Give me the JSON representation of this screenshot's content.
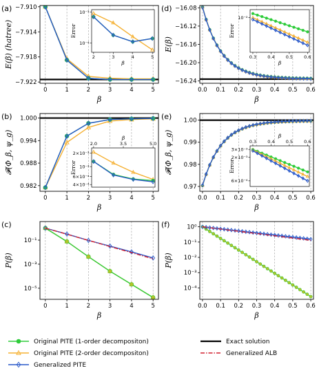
{
  "colors": {
    "green": "#2ecc3a",
    "orange": "#f5b031",
    "blue": "#2757c9",
    "black": "#000000",
    "red": "#d21f2e",
    "yellowgreen": "#b5c22a"
  },
  "legend": {
    "items": [
      {
        "key": "pite1",
        "label": "Original PITE (1-order decompositon)"
      },
      {
        "key": "pite2",
        "label": "Original PITE (2-order decompositon)"
      },
      {
        "key": "gpite",
        "label": "Generalized PITE"
      },
      {
        "key": "exact",
        "label": "Exact solution"
      },
      {
        "key": "galb",
        "label": "Generalized ALB"
      }
    ]
  },
  "chart_data": [
    {
      "id": "a",
      "panel_label": "(a)",
      "type": "line",
      "xlabel": "β",
      "ylabel": "E(β) (hatree)",
      "xlim": [
        -0.25,
        5.25
      ],
      "ylim": [
        -7.9222,
        -7.9098
      ],
      "xticks": [
        0,
        1,
        2,
        3,
        4,
        5
      ],
      "yticks": [
        -7.91,
        -7.914,
        -7.918,
        -7.922
      ],
      "ytick_labels": [
        "−7.910",
        "−7.914",
        "−7.918",
        "−7.922"
      ],
      "hline": {
        "key": "exact",
        "y": -7.9216
      },
      "series": [
        {
          "key": "pite2",
          "x": [
            0,
            1,
            2,
            3,
            4,
            5
          ],
          "y": [
            -7.91,
            -7.9183,
            -7.9211,
            -7.9214,
            -7.9215,
            -7.9215
          ]
        },
        {
          "key": "pite1",
          "x": [
            0,
            1,
            2,
            3,
            4,
            5
          ],
          "y": [
            -7.91,
            -7.9185,
            -7.9214,
            -7.9216,
            -7.9216,
            -7.9216
          ]
        },
        {
          "key": "gpite",
          "x": [
            0,
            1,
            2,
            3,
            4,
            5
          ],
          "y": [
            -7.91,
            -7.9185,
            -7.9214,
            -7.9216,
            -7.9216,
            -7.9216
          ]
        }
      ],
      "inset": {
        "xlabel": "β",
        "ylabel": "Error",
        "yscale": "log",
        "xlim": [
          1.9,
          5.1
        ],
        "ylim": [
          5e-05,
          0.0012
        ],
        "xticks": [
          2,
          3,
          4,
          5
        ],
        "yticks": [
          0.0001,
          0.001
        ],
        "ytick_labels": [
          "10⁻⁴",
          "10⁻³"
        ],
        "series": [
          {
            "key": "pite2",
            "x": [
              2,
              3,
              4,
              5
            ],
            "y": [
              0.0009,
              0.00045,
              0.00016,
              6e-05
            ]
          },
          {
            "key": "pite1",
            "x": [
              2,
              3,
              4,
              5
            ],
            "y": [
              0.0007,
              0.00018,
              0.00011,
              0.00014
            ]
          },
          {
            "key": "gpite",
            "x": [
              2,
              3,
              4,
              5
            ],
            "y": [
              0.0007,
              0.00018,
              0.00011,
              0.00014
            ]
          }
        ]
      }
    },
    {
      "id": "b",
      "panel_label": "(b)",
      "type": "line",
      "xlabel": "β",
      "ylabel": "𝓕(Φ_β, ψ_g)",
      "xlim": [
        -0.25,
        5.25
      ],
      "ylim": [
        0.9805,
        1.0012
      ],
      "xticks": [
        0,
        1,
        2,
        3,
        4,
        5
      ],
      "yticks": [
        1.0,
        0.994,
        0.988,
        0.982
      ],
      "ytick_labels": [
        "1.000",
        "0.994",
        "0.988",
        "0.982"
      ],
      "hline": {
        "key": "exact",
        "y": 1.0
      },
      "series": [
        {
          "key": "pite2",
          "x": [
            0,
            1,
            2,
            3,
            4,
            5
          ],
          "y": [
            0.9815,
            0.9935,
            0.9975,
            0.9992,
            0.9996,
            0.9998
          ]
        },
        {
          "key": "pite1",
          "x": [
            0,
            1,
            2,
            3,
            4,
            5
          ],
          "y": [
            0.9815,
            0.9952,
            0.9986,
            0.9996,
            0.9998,
            0.9999
          ]
        },
        {
          "key": "gpite",
          "x": [
            0,
            1,
            2,
            3,
            4,
            5
          ],
          "y": [
            0.9815,
            0.9952,
            0.9986,
            0.9996,
            0.9998,
            0.9999
          ]
        }
      ],
      "inset": {
        "xlabel": "β",
        "ylabel": "Error",
        "yscale": "log",
        "xaxis_top": true,
        "xlim": [
          1.9,
          5.1
        ],
        "ylim": [
          0.00035,
          0.0026
        ],
        "xticks": [
          2.0,
          3.5,
          5.0
        ],
        "xtick_labels": [
          "2.0",
          "3.5",
          "5.0"
        ],
        "yticks": [
          0.0004,
          0.0006,
          0.001,
          0.002
        ],
        "ytick_labels": [
          "4×10⁻⁴",
          "6×10⁻⁴",
          "10⁻³",
          "2×10⁻³"
        ],
        "series": [
          {
            "key": "pite2",
            "x": [
              2,
              3,
              4,
              5
            ],
            "y": [
              0.0021,
              0.0012,
              0.00075,
              0.00052
            ]
          },
          {
            "key": "pite1",
            "x": [
              2,
              3,
              4,
              5
            ],
            "y": [
              0.0013,
              0.00067,
              0.00053,
              0.00049
            ]
          },
          {
            "key": "gpite",
            "x": [
              2,
              3,
              4,
              5
            ],
            "y": [
              0.0013,
              0.00065,
              0.00052,
              0.00046
            ]
          }
        ]
      }
    },
    {
      "id": "c",
      "panel_label": "(c)",
      "type": "line",
      "xlabel": "β",
      "ylabel": "P(β)",
      "yscale": "log",
      "xlim": [
        -0.25,
        5.25
      ],
      "ylim": [
        1.2e-06,
        3.5
      ],
      "xticks": [
        0,
        1,
        2,
        3,
        4,
        5
      ],
      "yticks": [
        0.1,
        0.001,
        1e-05
      ],
      "ytick_labels": [
        "10⁻¹",
        "10⁻³",
        "10⁻⁵"
      ],
      "series": [
        {
          "key": "pite2",
          "x": [
            0,
            1,
            2,
            3,
            4,
            5
          ],
          "y": [
            1.0,
            0.077,
            0.0042,
            0.00026,
            2.1e-05,
            1.7e-06
          ]
        },
        {
          "key": "pite1",
          "x": [
            0,
            1,
            2,
            3,
            4,
            5
          ],
          "y": [
            1.0,
            0.077,
            0.0042,
            0.00026,
            2.1e-05,
            1.7e-06
          ]
        },
        {
          "key": "gpite",
          "x": [
            0,
            1,
            2,
            3,
            4,
            5
          ],
          "y": [
            1.0,
            0.32,
            0.095,
            0.032,
            0.0105,
            0.0033
          ]
        },
        {
          "key": "galb",
          "x": [
            0,
            5
          ],
          "y": [
            1.0,
            0.0028
          ]
        }
      ]
    },
    {
      "id": "d",
      "panel_label": "(d)",
      "type": "line",
      "xlabel": "β",
      "ylabel": "E(β)",
      "xlim": [
        -0.015,
        0.615
      ],
      "ylim": [
        -16.245,
        -16.075
      ],
      "xticks": [
        0.0,
        0.1,
        0.2,
        0.3,
        0.4,
        0.5,
        0.6
      ],
      "xtick_labels": [
        "0.0",
        "0.1",
        "0.2",
        "0.3",
        "0.4",
        "0.5",
        "0.6"
      ],
      "yticks": [
        -16.08,
        -16.12,
        -16.16,
        -16.2,
        -16.24
      ],
      "ytick_labels": [
        "−16.08",
        "−16.12",
        "−16.16",
        "−16.20",
        "−16.24"
      ],
      "hline": {
        "key": "exact",
        "y": -16.236
      },
      "decay": {
        "x0": 0,
        "x1": 0.6,
        "n": 31,
        "y0": -16.079,
        "yinf": -16.2355,
        "rate": 9.5
      },
      "inset": {
        "xlabel": "β",
        "ylabel": "Error",
        "yscale": "log",
        "xlim": [
          0.285,
          0.61
        ],
        "ylim": [
          0.0015,
          0.0155
        ],
        "xticks": [
          0.3,
          0.4,
          0.5,
          0.6
        ],
        "xtick_labels": [
          "0.3",
          "0.4",
          "0.5",
          "0.6"
        ],
        "yticks": [
          0.01
        ],
        "ytick_labels": [
          "10⁻²"
        ],
        "series": [
          {
            "key": "pite1",
            "x": [
              0.3,
              0.6
            ],
            "y": [
              0.0125,
              0.0046
            ]
          },
          {
            "key": "pite2",
            "x": [
              0.3,
              0.6
            ],
            "y": [
              0.01,
              0.0026
            ]
          },
          {
            "key": "gpite",
            "x": [
              0.3,
              0.6
            ],
            "y": [
              0.009,
              0.0022
            ]
          }
        ]
      }
    },
    {
      "id": "e",
      "panel_label": "(e)",
      "type": "line",
      "xlabel": "β",
      "ylabel": "𝓕(Φ_β, ψ_g)",
      "xlim": [
        -0.015,
        0.615
      ],
      "ylim": [
        0.9678,
        1.003
      ],
      "xticks": [
        0.0,
        0.1,
        0.2,
        0.3,
        0.4,
        0.5,
        0.6
      ],
      "xtick_labels": [
        "0.0",
        "0.1",
        "0.2",
        "0.3",
        "0.4",
        "0.5",
        "0.6"
      ],
      "yticks": [
        1.0,
        0.99,
        0.98,
        0.97
      ],
      "ytick_labels": [
        "1.00",
        "0.99",
        "0.98",
        "0.97"
      ],
      "hline": {
        "key": "exact",
        "y": 1.0
      },
      "growth": {
        "x0": 0,
        "x1": 0.6,
        "n": 31,
        "y0": 0.9705,
        "yinf": 0.9998,
        "rate": 9.5
      },
      "inset": {
        "xlabel": "β",
        "ylabel": "Error",
        "yscale": "log",
        "xaxis_top": true,
        "xlim": [
          0.285,
          0.61
        ],
        "ylim": [
          0.00045,
          0.0036
        ],
        "xticks": [
          0.3,
          0.4,
          0.5,
          0.6
        ],
        "xtick_labels": [
          "0.3",
          "0.4",
          "0.5",
          "0.6"
        ],
        "yticks": [
          0.0006,
          0.002,
          0.003
        ],
        "ytick_labels": [
          "6×10⁻⁴",
          "2×10⁻³",
          "3×10⁻³"
        ],
        "series": [
          {
            "key": "pite1",
            "x": [
              0.3,
              0.6
            ],
            "y": [
              0.003,
              0.00095
            ]
          },
          {
            "key": "pite2",
            "x": [
              0.3,
              0.6
            ],
            "y": [
              0.0029,
              0.00075
            ]
          },
          {
            "key": "gpite",
            "x": [
              0.3,
              0.6
            ],
            "y": [
              0.0028,
              0.0006
            ]
          }
        ]
      }
    },
    {
      "id": "f",
      "panel_label": "(f)",
      "type": "line",
      "xlabel": "β",
      "ylabel": "P(β)",
      "yscale": "log",
      "xlim": [
        -0.015,
        0.615
      ],
      "ylim": [
        1.8e-05,
        2.2
      ],
      "xticks": [
        0.0,
        0.1,
        0.2,
        0.3,
        0.4,
        0.5,
        0.6
      ],
      "xtick_labels": [
        "0.0",
        "0.1",
        "0.2",
        "0.3",
        "0.4",
        "0.5",
        "0.6"
      ],
      "yticks": [
        1,
        0.1,
        0.01,
        0.001,
        0.0001
      ],
      "ytick_labels": [
        "10⁰",
        "10⁻¹",
        "10⁻²",
        "10⁻³",
        "10⁻⁴"
      ],
      "expo": [
        {
          "key": "pite1",
          "x0": 0,
          "x1": 0.6,
          "n": 31,
          "y0": 1.0,
          "y1": 2.7e-05
        },
        {
          "key": "gpite",
          "x0": 0,
          "x1": 0.6,
          "n": 31,
          "y0": 1.0,
          "y1": 0.155
        },
        {
          "key": "galb",
          "x0": 0,
          "x1": 0.6,
          "n": 2,
          "y0": 1.0,
          "y1": 0.13
        }
      ]
    }
  ]
}
